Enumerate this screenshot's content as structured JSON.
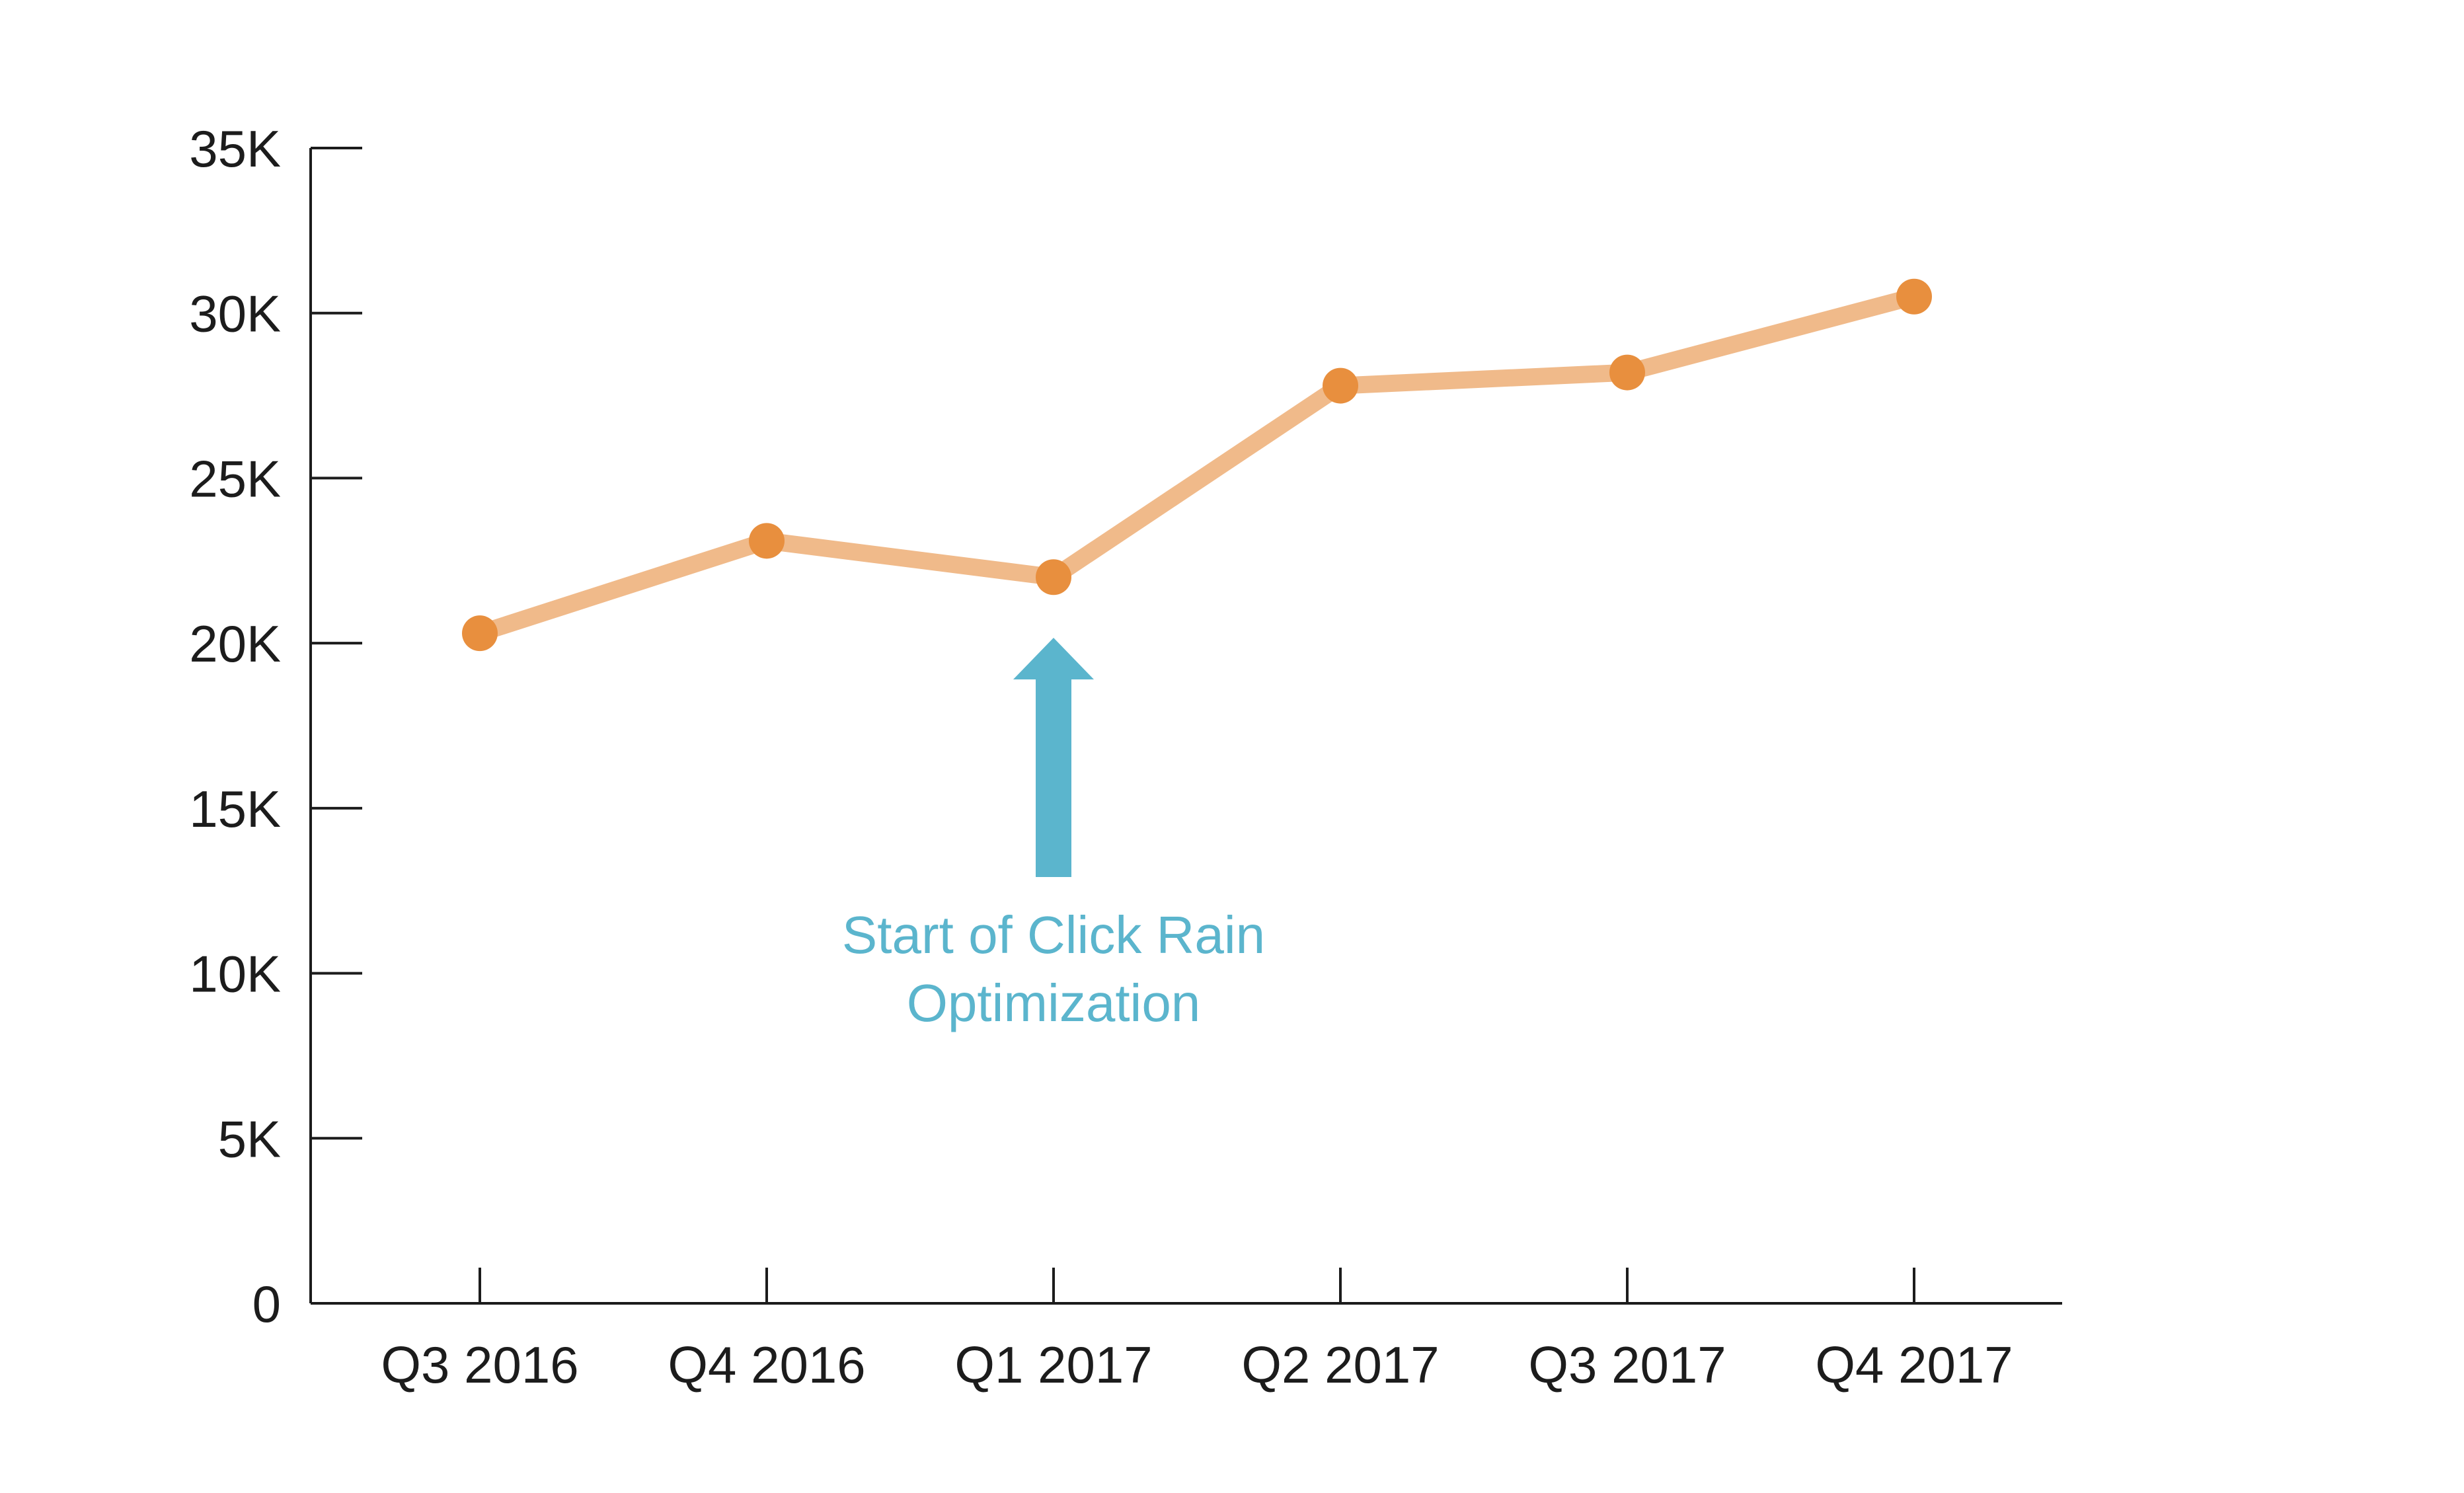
{
  "chart_data": {
    "type": "line",
    "title": "",
    "xlabel": "",
    "ylabel": "",
    "categories": [
      "Q3 2016",
      "Q4 2016",
      "Q1 2017",
      "Q2 2017",
      "Q3 2017",
      "Q4 2017"
    ],
    "series": [
      {
        "values": [
          20300,
          23100,
          22000,
          27800,
          28200,
          30500
        ]
      }
    ],
    "ylim": [
      0,
      35000
    ],
    "y_ticks": [
      0,
      5000,
      10000,
      15000,
      20000,
      25000,
      30000,
      35000
    ],
    "y_tick_labels": [
      "0",
      "5K",
      "10K",
      "15K",
      "20K",
      "25K",
      "30K",
      "35K"
    ],
    "grid": false,
    "legend": "none",
    "annotation": {
      "category": "Q1 2017",
      "lines": [
        "Start of Click Rain",
        "Optimization"
      ]
    },
    "colors": {
      "line": "#F0BA8A",
      "marker": "#E88F3E",
      "axis": "#1c1c1c",
      "annotation": "#5BB5CD"
    }
  }
}
